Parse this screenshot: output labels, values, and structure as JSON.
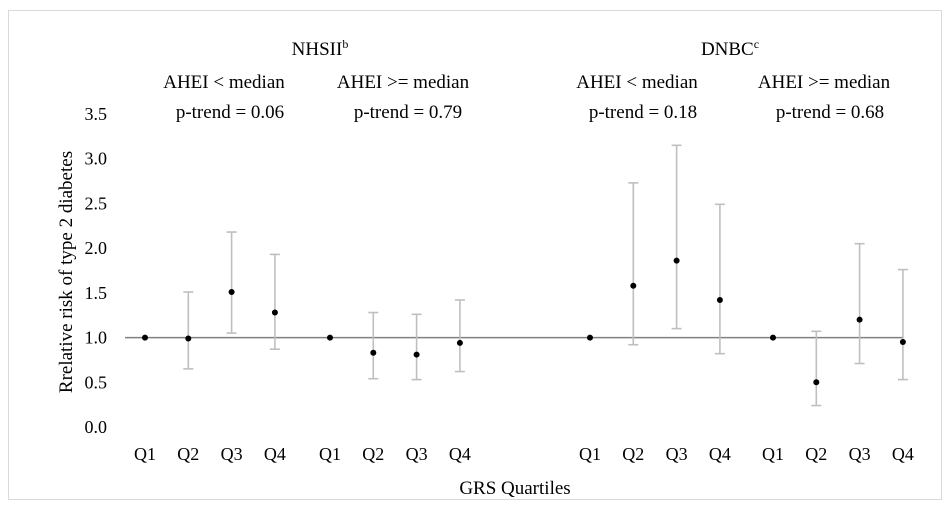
{
  "chart_data": {
    "type": "scatter",
    "ylabel": "Rrelative risk of type 2 diabetes",
    "xlabel": "GRS Quartiles",
    "ylim": [
      0,
      3.5
    ],
    "yticks": [
      "0.0",
      "0.5",
      "1.0",
      "1.5",
      "2.0",
      "2.5",
      "3.0",
      "3.5"
    ],
    "reference_line": 1.0,
    "grid": false,
    "cohorts": [
      {
        "name": "NHSII",
        "sup": "b"
      },
      {
        "name": "DNBC",
        "sup": "c"
      }
    ],
    "groups": [
      {
        "cohort": 0,
        "label": "AHEI < median",
        "ptrend": "p-trend = 0.06",
        "categories": [
          "Q1",
          "Q2",
          "Q3",
          "Q4"
        ],
        "points": [
          {
            "est": 1.0,
            "lo": null,
            "hi": null
          },
          {
            "est": 0.99,
            "lo": 0.65,
            "hi": 1.51
          },
          {
            "est": 1.51,
            "lo": 1.05,
            "hi": 2.18
          },
          {
            "est": 1.28,
            "lo": 0.87,
            "hi": 1.93
          }
        ]
      },
      {
        "cohort": 0,
        "label": "AHEI >= median",
        "ptrend": "p-trend = 0.79",
        "categories": [
          "Q1",
          "Q2",
          "Q3",
          "Q4"
        ],
        "points": [
          {
            "est": 1.0,
            "lo": null,
            "hi": null
          },
          {
            "est": 0.83,
            "lo": 0.54,
            "hi": 1.28
          },
          {
            "est": 0.81,
            "lo": 0.53,
            "hi": 1.26
          },
          {
            "est": 0.94,
            "lo": 0.62,
            "hi": 1.42
          }
        ]
      },
      {
        "cohort": 1,
        "label": "AHEI < median",
        "ptrend": "p-trend = 0.18",
        "categories": [
          "Q1",
          "Q2",
          "Q3",
          "Q4"
        ],
        "points": [
          {
            "est": 1.0,
            "lo": null,
            "hi": null
          },
          {
            "est": 1.58,
            "lo": 0.92,
            "hi": 2.73
          },
          {
            "est": 1.86,
            "lo": 1.1,
            "hi": 3.15
          },
          {
            "est": 1.42,
            "lo": 0.82,
            "hi": 2.49
          }
        ]
      },
      {
        "cohort": 1,
        "label": "AHEI >= median",
        "ptrend": "p-trend = 0.68",
        "categories": [
          "Q1",
          "Q2",
          "Q3",
          "Q4"
        ],
        "points": [
          {
            "est": 1.0,
            "lo": null,
            "hi": null
          },
          {
            "est": 0.5,
            "lo": 0.24,
            "hi": 1.07
          },
          {
            "est": 1.2,
            "lo": 0.71,
            "hi": 2.05
          },
          {
            "est": 0.95,
            "lo": 0.53,
            "hi": 1.76
          }
        ]
      }
    ],
    "colors": {
      "point": "#000000",
      "errorbar": "#bfbfbf",
      "refline": "#808080"
    }
  }
}
